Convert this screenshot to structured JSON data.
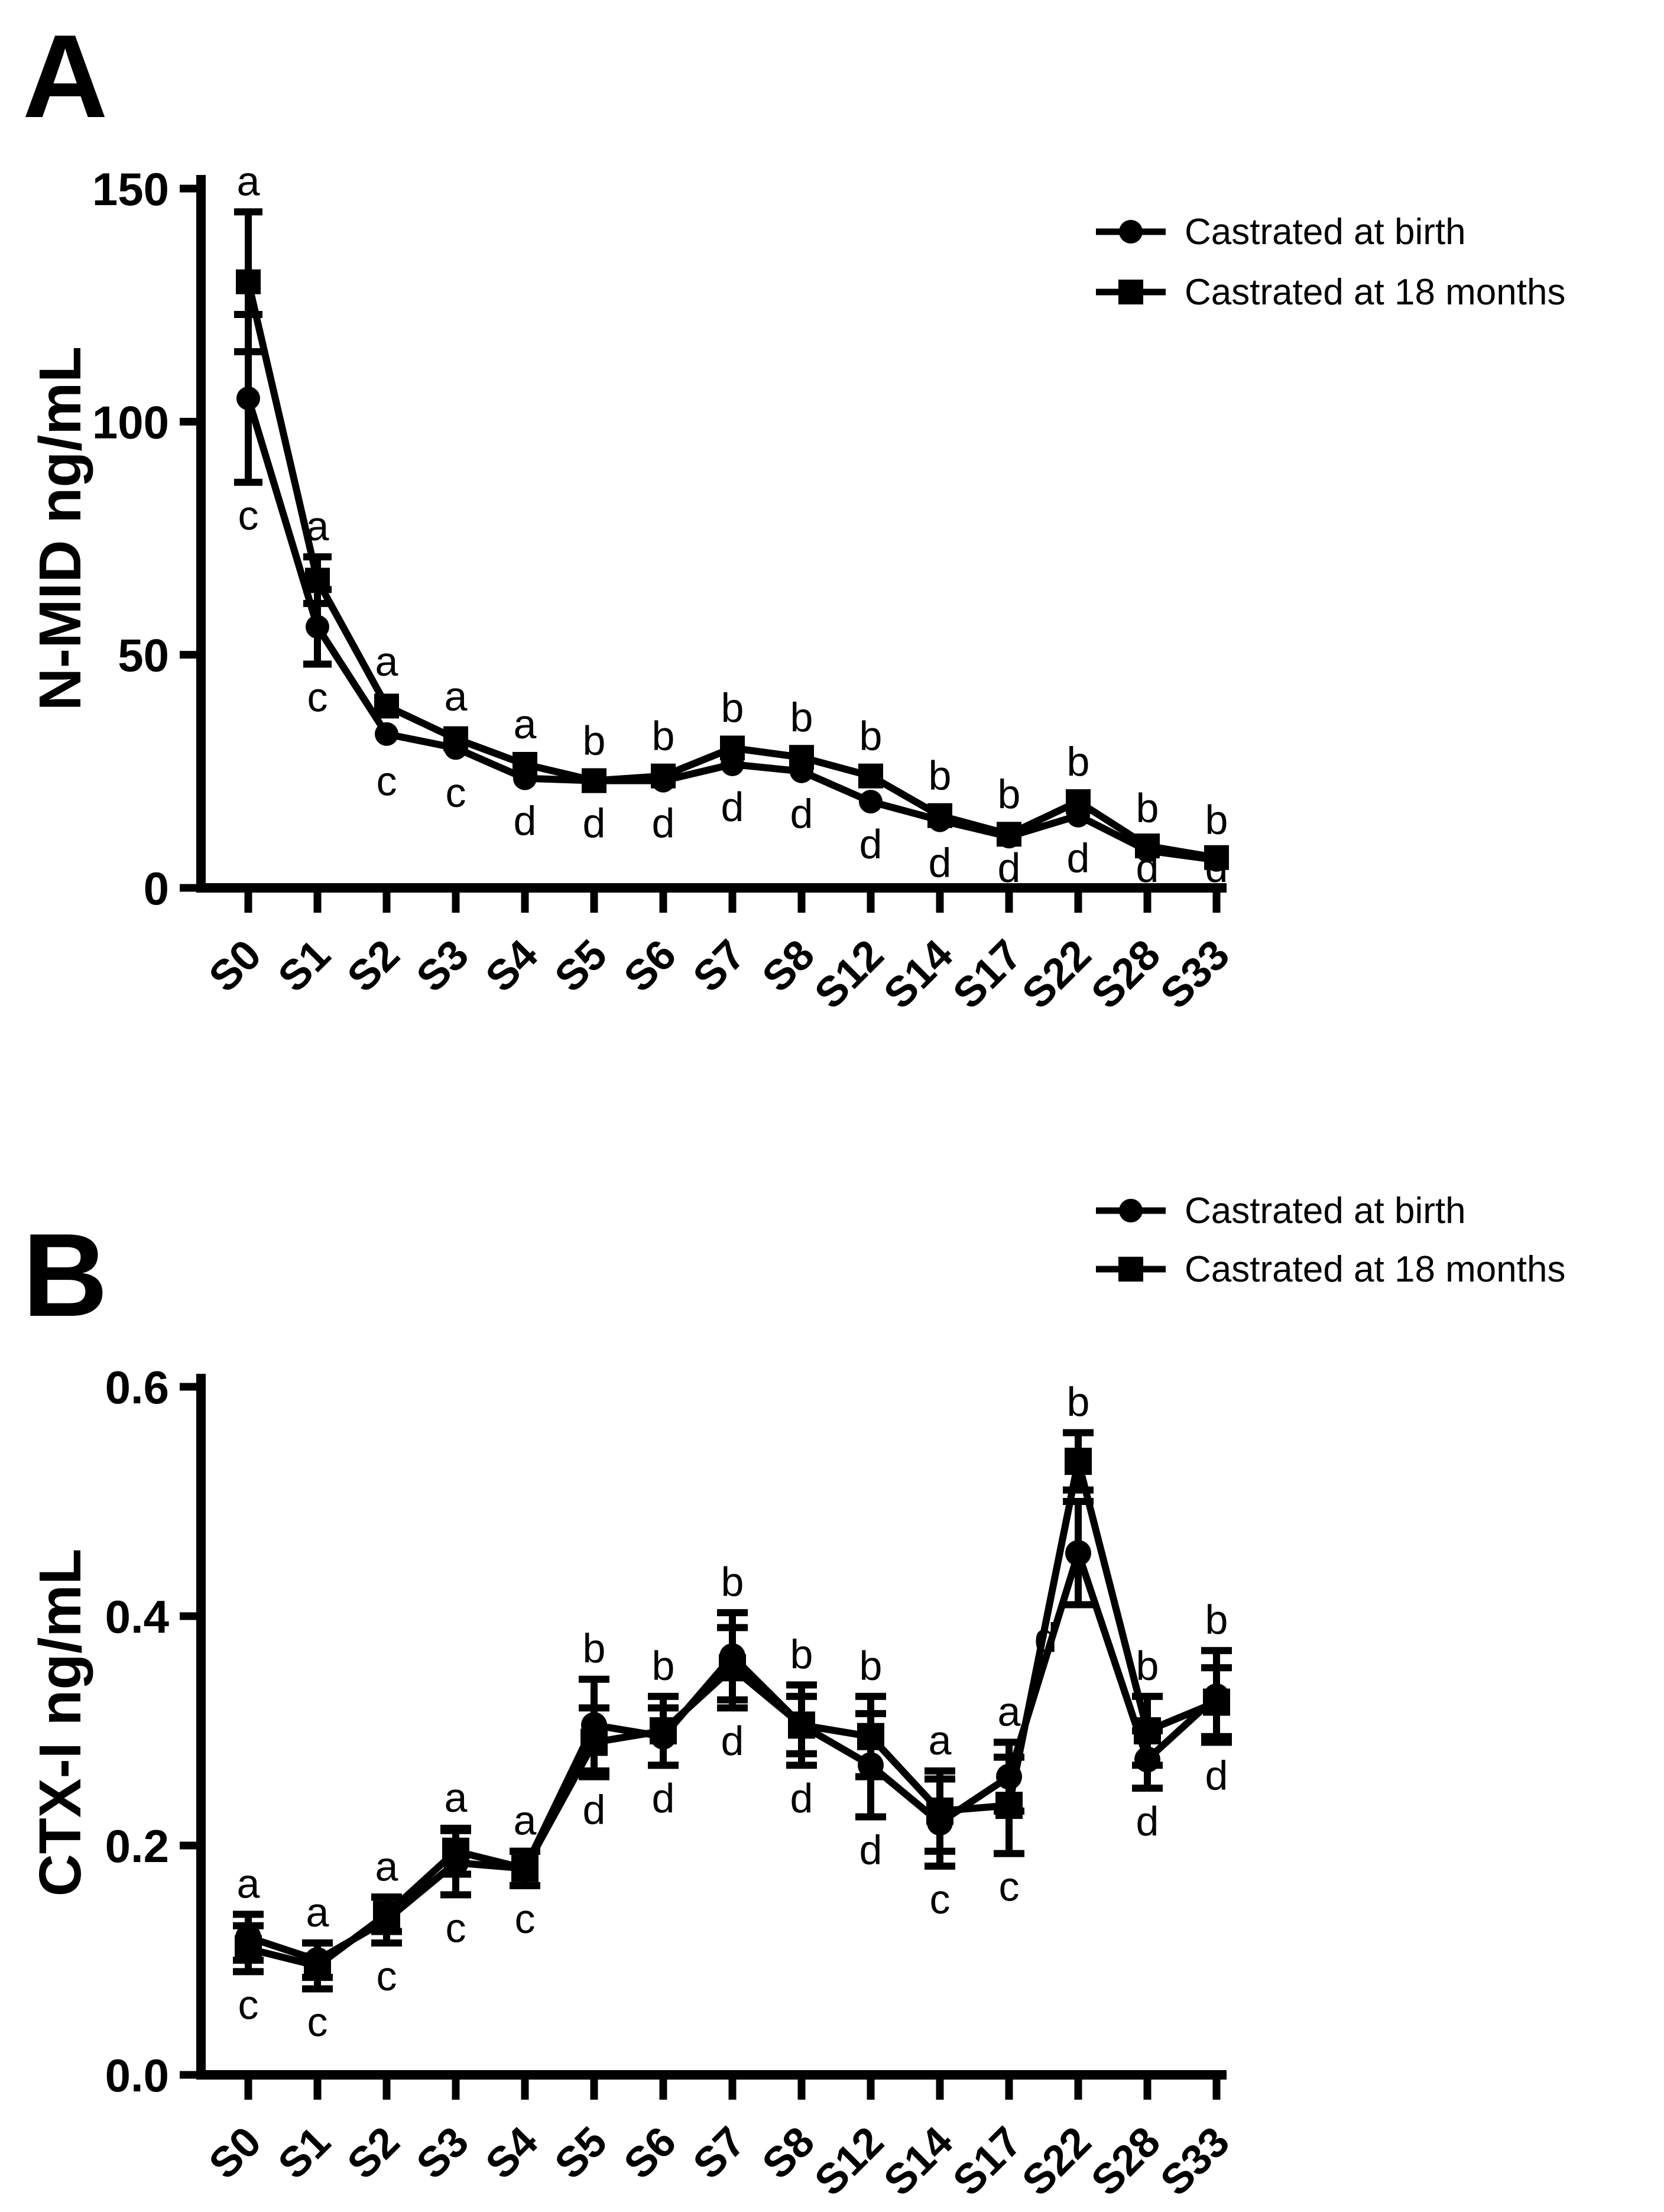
{
  "figure": {
    "background_color": "#ffffff",
    "ink_color": "#000000"
  },
  "chart_data": [
    {
      "id": "A",
      "panel_label": "A",
      "type": "line",
      "ylabel": "N-MID ng/mL",
      "xlabel": "",
      "ylim": [
        0,
        150
      ],
      "yticks": [
        0,
        50,
        100,
        150
      ],
      "ytick_labels": [
        "0",
        "50",
        "100",
        "150"
      ],
      "grid": false,
      "legend_position": "top-right",
      "categories": [
        "S0",
        "S1",
        "S2",
        "S3",
        "S4",
        "S5",
        "S6",
        "S7",
        "S8",
        "S12",
        "S14",
        "S17",
        "S22",
        "S28",
        "S33"
      ],
      "series": [
        {
          "name": "Castrated at birth",
          "marker": "circle",
          "values": [
            105,
            56,
            33,
            30,
            23.5,
            23,
            23,
            26.5,
            25,
            18.5,
            14.5,
            11,
            15.5,
            8,
            6
          ],
          "errors": [
            18,
            8,
            3,
            2.5,
            2,
            2,
            2,
            2,
            2,
            2,
            2,
            2,
            2,
            1.5,
            1.5
          ]
        },
        {
          "name": "Castrated at 18 months",
          "marker": "square",
          "values": [
            130,
            66,
            39,
            32,
            26.5,
            23,
            24,
            30,
            28,
            24,
            15.5,
            11.5,
            18.5,
            9,
            6.5
          ],
          "errors": [
            15,
            5,
            3,
            2.5,
            2,
            2,
            2,
            2,
            2,
            2,
            2,
            2,
            2,
            1.5,
            1.5
          ]
        }
      ],
      "sig_above": [
        "a",
        "a",
        "a",
        "a",
        "a",
        "b",
        "b",
        "b",
        "b",
        "b",
        "b",
        "b",
        "b",
        "b",
        "b"
      ],
      "sig_below": [
        "c",
        "c",
        "c",
        "c",
        "d",
        "d",
        "d",
        "d",
        "d",
        "d",
        "d",
        "d",
        "d",
        "d",
        "d"
      ]
    },
    {
      "id": "B",
      "panel_label": "B",
      "type": "line",
      "ylabel": "CTX-I ng/mL",
      "xlabel": "",
      "ylim": [
        0,
        0.6
      ],
      "yticks": [
        0.0,
        0.2,
        0.4,
        0.6
      ],
      "ytick_labels": [
        "0.0",
        "0.2",
        "0.4",
        "0.6"
      ],
      "grid": false,
      "legend_position": "top-right",
      "categories": [
        "S0",
        "S1",
        "S2",
        "S3",
        "S4",
        "S5",
        "S6",
        "S7",
        "S8",
        "S12",
        "S14",
        "S17",
        "S22",
        "S28",
        "S33"
      ],
      "series": [
        {
          "name": "Castrated at birth",
          "marker": "circle",
          "values": [
            0.12,
            0.1,
            0.135,
            0.185,
            0.18,
            0.305,
            0.295,
            0.365,
            0.305,
            0.27,
            0.22,
            0.26,
            0.455,
            0.275,
            0.33
          ],
          "errors": [
            0.02,
            0.015,
            0.02,
            0.028,
            0.015,
            0.04,
            0.025,
            0.038,
            0.025,
            0.045,
            0.038,
            0.03,
            0.045,
            0.025,
            0.04
          ]
        },
        {
          "name": "Castrated at 18 months",
          "marker": "square",
          "values": [
            0.11,
            0.095,
            0.14,
            0.195,
            0.18,
            0.29,
            0.3,
            0.355,
            0.305,
            0.295,
            0.23,
            0.235,
            0.535,
            0.3,
            0.325
          ],
          "errors": [
            0.02,
            0.02,
            0.015,
            0.02,
            0.015,
            0.03,
            0.03,
            0.035,
            0.035,
            0.035,
            0.035,
            0.042,
            0.025,
            0.03,
            0.03
          ]
        }
      ],
      "sig_above": [
        "a",
        "a",
        "a",
        "a",
        "a",
        "b",
        "b",
        "b",
        "b",
        "b",
        "a",
        "a",
        "b",
        "b",
        "b"
      ],
      "sig_below": [
        "c",
        "c",
        "c",
        "c",
        "c",
        "d",
        "d",
        "d",
        "d",
        "d",
        "c",
        "c",
        "d",
        "d",
        "d"
      ]
    }
  ]
}
